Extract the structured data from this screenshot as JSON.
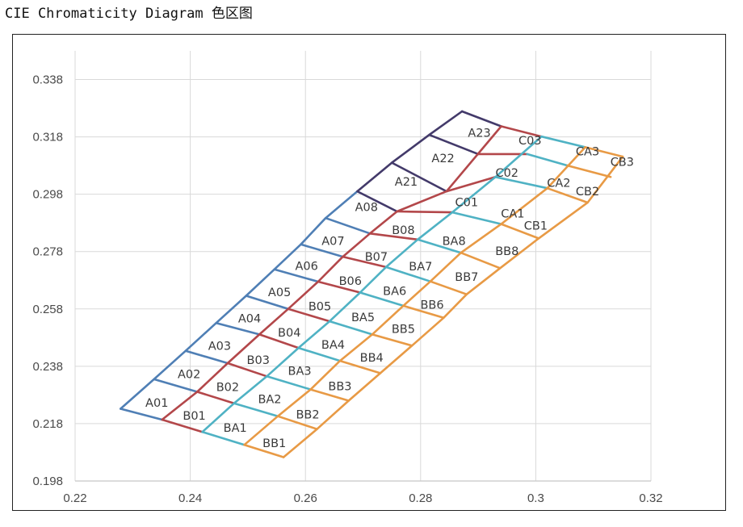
{
  "page": {
    "title": "CIE Chromaticity Diagram 色区图"
  },
  "chart_data": {
    "type": "line",
    "title": "",
    "xlabel": "",
    "ylabel": "",
    "xlim": [
      0.22,
      0.32
    ],
    "ylim": [
      0.198,
      0.348
    ],
    "xticks": [
      0.22,
      0.24,
      0.26,
      0.28,
      0.3,
      0.32
    ],
    "xtick_labels": [
      "0.22",
      "0.24",
      "0.26",
      "0.28",
      "0.3",
      "0.32"
    ],
    "yticks": [
      0.198,
      0.218,
      0.238,
      0.258,
      0.278,
      0.298,
      0.318,
      0.338
    ],
    "ytick_labels": [
      "0.198",
      "0.218",
      "0.238",
      "0.258",
      "0.278",
      "0.298",
      "0.318",
      "0.338"
    ],
    "grid": true,
    "colors": {
      "A": "#4f7fb5",
      "B": "#b3474a",
      "BA": "#4fb2c4",
      "BB": "#e89a45",
      "top": "#433a6a",
      "grid": "#d9d9d9",
      "axis": "#c8c8c8"
    },
    "boundaries": [
      {
        "name": "left-edge",
        "color": "A",
        "points": [
          [
            0.2279,
            0.2232
          ],
          [
            0.2337,
            0.2335
          ],
          [
            0.2392,
            0.2434
          ],
          [
            0.2445,
            0.2531
          ],
          [
            0.2497,
            0.2626
          ],
          [
            0.2546,
            0.2718
          ],
          [
            0.2592,
            0.2805
          ],
          [
            0.2635,
            0.2897
          ],
          [
            0.269,
            0.299
          ]
        ]
      },
      {
        "name": "A-B",
        "color": "B",
        "points": [
          [
            0.2351,
            0.2194
          ],
          [
            0.2412,
            0.2291
          ],
          [
            0.2465,
            0.2391
          ],
          [
            0.252,
            0.2491
          ],
          [
            0.257,
            0.258
          ],
          [
            0.2622,
            0.2675
          ],
          [
            0.2665,
            0.2762
          ],
          [
            0.2712,
            0.2843
          ],
          [
            0.2759,
            0.292
          ],
          [
            0.2845,
            0.299
          ],
          [
            0.294,
            0.3217
          ]
        ]
      },
      {
        "name": "B-BA",
        "color": "BA",
        "points": [
          [
            0.2421,
            0.2151
          ],
          [
            0.2476,
            0.2251
          ],
          [
            0.2533,
            0.2345
          ],
          [
            0.2588,
            0.2444
          ],
          [
            0.2642,
            0.2537
          ],
          [
            0.2695,
            0.2637
          ],
          [
            0.274,
            0.2726
          ],
          [
            0.2795,
            0.2822
          ],
          [
            0.2855,
            0.2917
          ],
          [
            0.293,
            0.304
          ],
          [
            0.301,
            0.3181
          ]
        ]
      },
      {
        "name": "BA-BB",
        "color": "BB",
        "points": [
          [
            0.2494,
            0.2106
          ],
          [
            0.2552,
            0.2206
          ],
          [
            0.2609,
            0.2299
          ],
          [
            0.266,
            0.2399
          ],
          [
            0.2716,
            0.2491
          ],
          [
            0.277,
            0.2591
          ],
          [
            0.2817,
            0.2676
          ],
          [
            0.287,
            0.2776
          ],
          [
            0.294,
            0.2876
          ],
          [
            0.302,
            0.3001
          ],
          [
            0.3086,
            0.3144
          ]
        ]
      },
      {
        "name": "right-edge",
        "color": "BB",
        "points": [
          [
            0.2562,
            0.2063
          ],
          [
            0.262,
            0.2161
          ],
          [
            0.2675,
            0.226
          ],
          [
            0.273,
            0.2356
          ],
          [
            0.2785,
            0.2452
          ],
          [
            0.284,
            0.2549
          ],
          [
            0.288,
            0.2631
          ],
          [
            0.2938,
            0.2722
          ],
          [
            0.3005,
            0.2826
          ],
          [
            0.309,
            0.2951
          ],
          [
            0.3151,
            0.3111
          ]
        ]
      },
      {
        "name": "top-edge",
        "color": "top",
        "points": [
          [
            0.269,
            0.299
          ],
          [
            0.275,
            0.309
          ],
          [
            0.2815,
            0.3187
          ],
          [
            0.2872,
            0.3269
          ]
        ]
      }
    ],
    "cross_lines": [
      {
        "color": "A",
        "points": [
          [
            0.2279,
            0.2232
          ],
          [
            0.2351,
            0.2194
          ]
        ]
      },
      {
        "color": "A",
        "points": [
          [
            0.2337,
            0.2335
          ],
          [
            0.2412,
            0.2291
          ]
        ]
      },
      {
        "color": "A",
        "points": [
          [
            0.2392,
            0.2434
          ],
          [
            0.2465,
            0.2391
          ]
        ]
      },
      {
        "color": "A",
        "points": [
          [
            0.2445,
            0.2531
          ],
          [
            0.252,
            0.2491
          ]
        ]
      },
      {
        "color": "A",
        "points": [
          [
            0.2497,
            0.2626
          ],
          [
            0.257,
            0.258
          ]
        ]
      },
      {
        "color": "A",
        "points": [
          [
            0.2546,
            0.2718
          ],
          [
            0.2622,
            0.2675
          ]
        ]
      },
      {
        "color": "A",
        "points": [
          [
            0.2592,
            0.2805
          ],
          [
            0.2665,
            0.2762
          ]
        ]
      },
      {
        "color": "A",
        "points": [
          [
            0.2635,
            0.2897
          ],
          [
            0.2712,
            0.2843
          ]
        ]
      },
      {
        "color": "top",
        "points": [
          [
            0.269,
            0.299
          ],
          [
            0.2759,
            0.292
          ]
        ]
      },
      {
        "color": "top",
        "points": [
          [
            0.275,
            0.309
          ],
          [
            0.2845,
            0.299
          ]
        ]
      },
      {
        "color": "top",
        "points": [
          [
            0.2815,
            0.3187
          ],
          [
            0.29,
            0.312
          ]
        ]
      },
      {
        "color": "top",
        "points": [
          [
            0.2872,
            0.3269
          ],
          [
            0.294,
            0.3217
          ]
        ]
      },
      {
        "color": "B",
        "points": [
          [
            0.2351,
            0.2194
          ],
          [
            0.2421,
            0.2151
          ]
        ]
      },
      {
        "color": "B",
        "points": [
          [
            0.2412,
            0.2291
          ],
          [
            0.2476,
            0.2251
          ]
        ]
      },
      {
        "color": "B",
        "points": [
          [
            0.2465,
            0.2391
          ],
          [
            0.2533,
            0.2345
          ]
        ]
      },
      {
        "color": "B",
        "points": [
          [
            0.252,
            0.2491
          ],
          [
            0.2588,
            0.2444
          ]
        ]
      },
      {
        "color": "B",
        "points": [
          [
            0.257,
            0.258
          ],
          [
            0.2642,
            0.2537
          ]
        ]
      },
      {
        "color": "B",
        "points": [
          [
            0.2622,
            0.2675
          ],
          [
            0.2695,
            0.2637
          ]
        ]
      },
      {
        "color": "B",
        "points": [
          [
            0.2665,
            0.2762
          ],
          [
            0.274,
            0.2726
          ]
        ]
      },
      {
        "color": "B",
        "points": [
          [
            0.2712,
            0.2843
          ],
          [
            0.2795,
            0.2822
          ]
        ]
      },
      {
        "color": "B",
        "points": [
          [
            0.2759,
            0.292
          ],
          [
            0.2855,
            0.2917
          ]
        ]
      },
      {
        "color": "B",
        "points": [
          [
            0.2845,
            0.299
          ],
          [
            0.293,
            0.304
          ]
        ]
      },
      {
        "color": "B",
        "points": [
          [
            0.29,
            0.312
          ],
          [
            0.2985,
            0.312
          ]
        ]
      },
      {
        "color": "B",
        "points": [
          [
            0.294,
            0.3217
          ],
          [
            0.301,
            0.3181
          ]
        ]
      },
      {
        "color": "BA",
        "points": [
          [
            0.2421,
            0.2151
          ],
          [
            0.2494,
            0.2106
          ]
        ]
      },
      {
        "color": "BA",
        "points": [
          [
            0.2476,
            0.2251
          ],
          [
            0.2552,
            0.2206
          ]
        ]
      },
      {
        "color": "BA",
        "points": [
          [
            0.2533,
            0.2345
          ],
          [
            0.2609,
            0.2299
          ]
        ]
      },
      {
        "color": "BA",
        "points": [
          [
            0.2588,
            0.2444
          ],
          [
            0.266,
            0.2399
          ]
        ]
      },
      {
        "color": "BA",
        "points": [
          [
            0.2642,
            0.2537
          ],
          [
            0.2716,
            0.2491
          ]
        ]
      },
      {
        "color": "BA",
        "points": [
          [
            0.2695,
            0.2637
          ],
          [
            0.277,
            0.2591
          ]
        ]
      },
      {
        "color": "BA",
        "points": [
          [
            0.274,
            0.2726
          ],
          [
            0.2817,
            0.2676
          ]
        ]
      },
      {
        "color": "BA",
        "points": [
          [
            0.2795,
            0.2822
          ],
          [
            0.287,
            0.2776
          ]
        ]
      },
      {
        "color": "BA",
        "points": [
          [
            0.2855,
            0.2917
          ],
          [
            0.294,
            0.2876
          ]
        ]
      },
      {
        "color": "BA",
        "points": [
          [
            0.293,
            0.304
          ],
          [
            0.302,
            0.3001
          ]
        ]
      },
      {
        "color": "BA",
        "points": [
          [
            0.2985,
            0.312
          ],
          [
            0.3055,
            0.308
          ]
        ]
      },
      {
        "color": "BA",
        "points": [
          [
            0.301,
            0.3181
          ],
          [
            0.3086,
            0.3144
          ]
        ]
      },
      {
        "color": "BB",
        "points": [
          [
            0.2494,
            0.2106
          ],
          [
            0.2562,
            0.2063
          ]
        ]
      },
      {
        "color": "BB",
        "points": [
          [
            0.2552,
            0.2206
          ],
          [
            0.262,
            0.2161
          ]
        ]
      },
      {
        "color": "BB",
        "points": [
          [
            0.2609,
            0.2299
          ],
          [
            0.2675,
            0.226
          ]
        ]
      },
      {
        "color": "BB",
        "points": [
          [
            0.266,
            0.2399
          ],
          [
            0.273,
            0.2356
          ]
        ]
      },
      {
        "color": "BB",
        "points": [
          [
            0.2716,
            0.2491
          ],
          [
            0.2785,
            0.2452
          ]
        ]
      },
      {
        "color": "BB",
        "points": [
          [
            0.277,
            0.2591
          ],
          [
            0.284,
            0.2549
          ]
        ]
      },
      {
        "color": "BB",
        "points": [
          [
            0.2817,
            0.2676
          ],
          [
            0.288,
            0.2631
          ]
        ]
      },
      {
        "color": "BB",
        "points": [
          [
            0.287,
            0.2776
          ],
          [
            0.2938,
            0.2722
          ]
        ]
      },
      {
        "color": "BB",
        "points": [
          [
            0.294,
            0.2876
          ],
          [
            0.3005,
            0.2826
          ]
        ]
      },
      {
        "color": "BB",
        "points": [
          [
            0.302,
            0.3001
          ],
          [
            0.309,
            0.2951
          ]
        ]
      },
      {
        "color": "BB",
        "points": [
          [
            0.3055,
            0.308
          ],
          [
            0.313,
            0.304
          ]
        ]
      },
      {
        "color": "BB",
        "points": [
          [
            0.3086,
            0.3144
          ],
          [
            0.3151,
            0.3111
          ]
        ]
      }
    ],
    "zones": [
      {
        "label": "A01",
        "x": 0.2342,
        "y": 0.225
      },
      {
        "label": "A02",
        "x": 0.2398,
        "y": 0.235
      },
      {
        "label": "A03",
        "x": 0.2451,
        "y": 0.2449
      },
      {
        "label": "A04",
        "x": 0.2503,
        "y": 0.2544
      },
      {
        "label": "A05",
        "x": 0.2555,
        "y": 0.2636
      },
      {
        "label": "A06",
        "x": 0.2602,
        "y": 0.2727
      },
      {
        "label": "A07",
        "x": 0.2648,
        "y": 0.2815
      },
      {
        "label": "A08",
        "x": 0.2706,
        "y": 0.2933
      },
      {
        "label": "A21",
        "x": 0.2775,
        "y": 0.3021
      },
      {
        "label": "A22",
        "x": 0.2839,
        "y": 0.3103
      },
      {
        "label": "A23",
        "x": 0.2902,
        "y": 0.3192
      },
      {
        "label": "B01",
        "x": 0.2407,
        "y": 0.2205
      },
      {
        "label": "B02",
        "x": 0.2465,
        "y": 0.2305
      },
      {
        "label": "B03",
        "x": 0.2518,
        "y": 0.24
      },
      {
        "label": "B04",
        "x": 0.2572,
        "y": 0.2495
      },
      {
        "label": "B05",
        "x": 0.2625,
        "y": 0.2587
      },
      {
        "label": "B06",
        "x": 0.2678,
        "y": 0.2675
      },
      {
        "label": "B07",
        "x": 0.2723,
        "y": 0.276
      },
      {
        "label": "B08",
        "x": 0.277,
        "y": 0.2853
      },
      {
        "label": "BA1",
        "x": 0.2478,
        "y": 0.2163
      },
      {
        "label": "BA2",
        "x": 0.2538,
        "y": 0.2263
      },
      {
        "label": "BA3",
        "x": 0.259,
        "y": 0.2362
      },
      {
        "label": "BA4",
        "x": 0.2648,
        "y": 0.2453
      },
      {
        "label": "BA5",
        "x": 0.27,
        "y": 0.2549
      },
      {
        "label": "BA6",
        "x": 0.2755,
        "y": 0.264
      },
      {
        "label": "BA7",
        "x": 0.28,
        "y": 0.2726
      },
      {
        "label": "BA8",
        "x": 0.2858,
        "y": 0.2814
      },
      {
        "label": "BB1",
        "x": 0.2546,
        "y": 0.2109
      },
      {
        "label": "BB2",
        "x": 0.2604,
        "y": 0.221
      },
      {
        "label": "BB3",
        "x": 0.266,
        "y": 0.2308
      },
      {
        "label": "BB4",
        "x": 0.2715,
        "y": 0.2408
      },
      {
        "label": "BB5",
        "x": 0.277,
        "y": 0.2508
      },
      {
        "label": "BB6",
        "x": 0.282,
        "y": 0.2592
      },
      {
        "label": "BB7",
        "x": 0.288,
        "y": 0.2689
      },
      {
        "label": "BB8",
        "x": 0.295,
        "y": 0.2779
      },
      {
        "label": "C01",
        "x": 0.288,
        "y": 0.2949
      },
      {
        "label": "C02",
        "x": 0.295,
        "y": 0.3052
      },
      {
        "label": "C03",
        "x": 0.299,
        "y": 0.3165
      },
      {
        "label": "CA1",
        "x": 0.296,
        "y": 0.291
      },
      {
        "label": "CA2",
        "x": 0.304,
        "y": 0.3017
      },
      {
        "label": "CA3",
        "x": 0.309,
        "y": 0.3127
      },
      {
        "label": "CB1",
        "x": 0.3,
        "y": 0.2868
      },
      {
        "label": "CB2",
        "x": 0.309,
        "y": 0.2987
      },
      {
        "label": "CB3",
        "x": 0.315,
        "y": 0.309
      }
    ]
  }
}
